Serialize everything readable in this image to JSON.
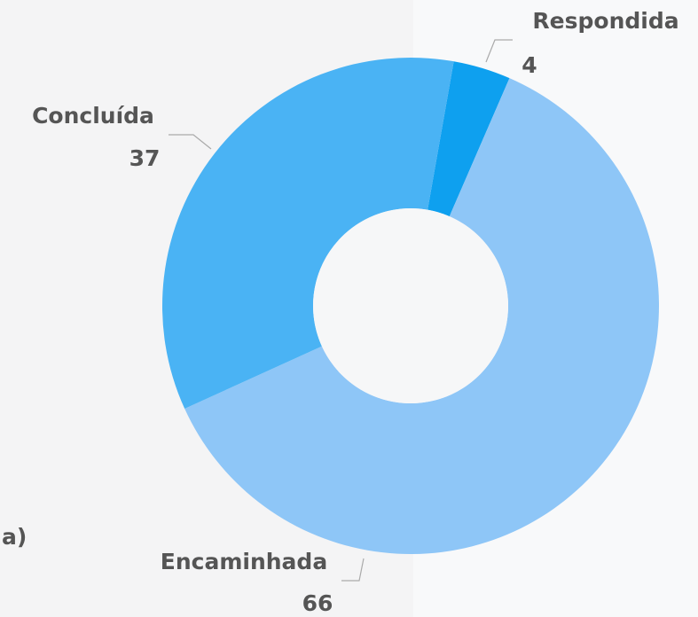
{
  "chart_data": {
    "type": "donut",
    "categories": [
      "Respondida",
      "Encaminhada",
      "Concluída"
    ],
    "values": [
      4,
      66,
      37
    ],
    "colors": [
      "#0ea0ef",
      "#8ec6f7",
      "#4ab3f4"
    ]
  },
  "side_label": "a)"
}
